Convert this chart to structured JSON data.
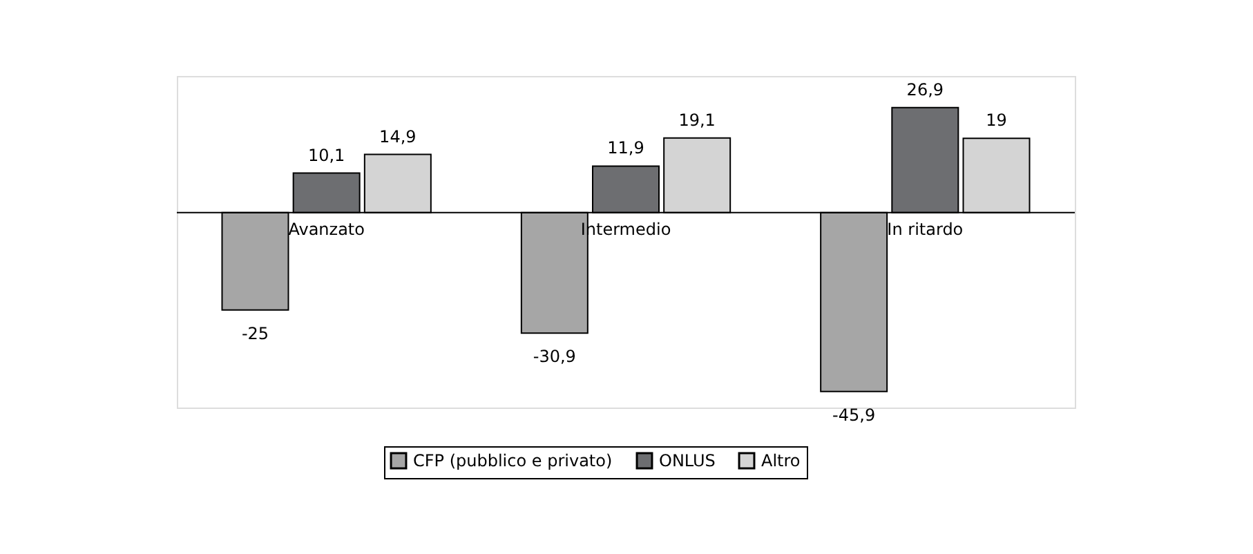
{
  "chart_data": {
    "type": "bar",
    "categories": [
      "Avanzato",
      "Intermedio",
      "In ritardo"
    ],
    "series": [
      {
        "name": "CFP (pubblico e privato)",
        "color": "#a6a6a6",
        "values": [
          -25,
          -30.9,
          -45.9
        ],
        "value_labels": [
          "-25",
          "-30,9",
          "-45,9"
        ]
      },
      {
        "name": "ONLUS",
        "color": "#6d6e71",
        "values": [
          10.1,
          11.9,
          26.9
        ],
        "value_labels": [
          "10,1",
          "11,9",
          "26,9"
        ]
      },
      {
        "name": "Altro",
        "color": "#d4d4d4",
        "values": [
          14.9,
          19.1,
          19
        ],
        "value_labels": [
          "14,9",
          "19,1",
          "19"
        ]
      }
    ],
    "ylim": [
      -50,
      35
    ],
    "tick_labels": "x",
    "legend": "bottom"
  }
}
